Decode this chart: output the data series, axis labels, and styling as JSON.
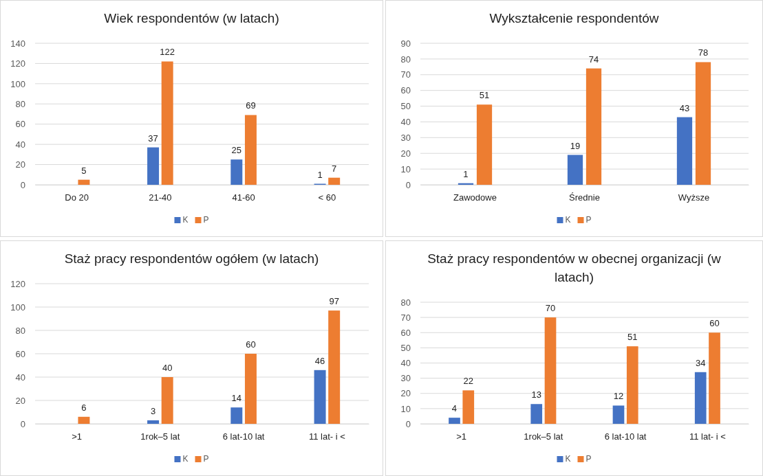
{
  "chart_data": [
    {
      "type": "bar",
      "title": "Wiek respondentów (w latach)",
      "categories": [
        "Do 20",
        "21-40",
        "41-60",
        "< 60"
      ],
      "series": [
        {
          "name": "K",
          "color": "#4472c4",
          "values": [
            null,
            37,
            25,
            1
          ]
        },
        {
          "name": "P",
          "color": "#ed7d31",
          "values": [
            5,
            122,
            69,
            7
          ]
        }
      ],
      "ylim": [
        0,
        140
      ],
      "yticks": [
        0,
        20,
        40,
        60,
        80,
        100,
        120,
        140
      ],
      "grid": "y",
      "legend": "bottom",
      "data_labels": true
    },
    {
      "type": "bar",
      "title": "Wykształcenie respondentów",
      "categories": [
        "Zawodowe",
        "Średnie",
        "Wyższe"
      ],
      "series": [
        {
          "name": "K",
          "color": "#4472c4",
          "values": [
            1,
            19,
            43
          ]
        },
        {
          "name": "P",
          "color": "#ed7d31",
          "values": [
            51,
            74,
            78
          ]
        }
      ],
      "ylim": [
        0,
        90
      ],
      "yticks": [
        0,
        10,
        20,
        30,
        40,
        50,
        60,
        70,
        80,
        90
      ],
      "grid": "y",
      "legend": "bottom",
      "data_labels": true
    },
    {
      "type": "bar",
      "title": "Staż pracy respondentów ogółem (w latach)",
      "categories": [
        ">1",
        "1rok–5 lat",
        "6 lat-10 lat",
        "11 lat- i <"
      ],
      "series": [
        {
          "name": "K",
          "color": "#4472c4",
          "values": [
            null,
            3,
            14,
            46
          ]
        },
        {
          "name": "P",
          "color": "#ed7d31",
          "values": [
            6,
            40,
            60,
            97
          ]
        }
      ],
      "ylim": [
        0,
        120
      ],
      "yticks": [
        0,
        20,
        40,
        60,
        80,
        100,
        120
      ],
      "grid": "y",
      "legend": "bottom",
      "data_labels": true
    },
    {
      "type": "bar",
      "title": "Staż pracy respondentów w obecnej organizacji (w latach)",
      "categories": [
        ">1",
        "1rok–5 lat",
        "6 lat-10 lat",
        "11 lat- i <"
      ],
      "series": [
        {
          "name": "K",
          "color": "#4472c4",
          "values": [
            4,
            13,
            12,
            34
          ]
        },
        {
          "name": "P",
          "color": "#ed7d31",
          "values": [
            22,
            70,
            51,
            60
          ]
        }
      ],
      "ylim": [
        0,
        80
      ],
      "yticks": [
        0,
        10,
        20,
        30,
        40,
        50,
        60,
        70,
        80
      ],
      "grid": "y",
      "legend": "bottom",
      "data_labels": true
    }
  ]
}
